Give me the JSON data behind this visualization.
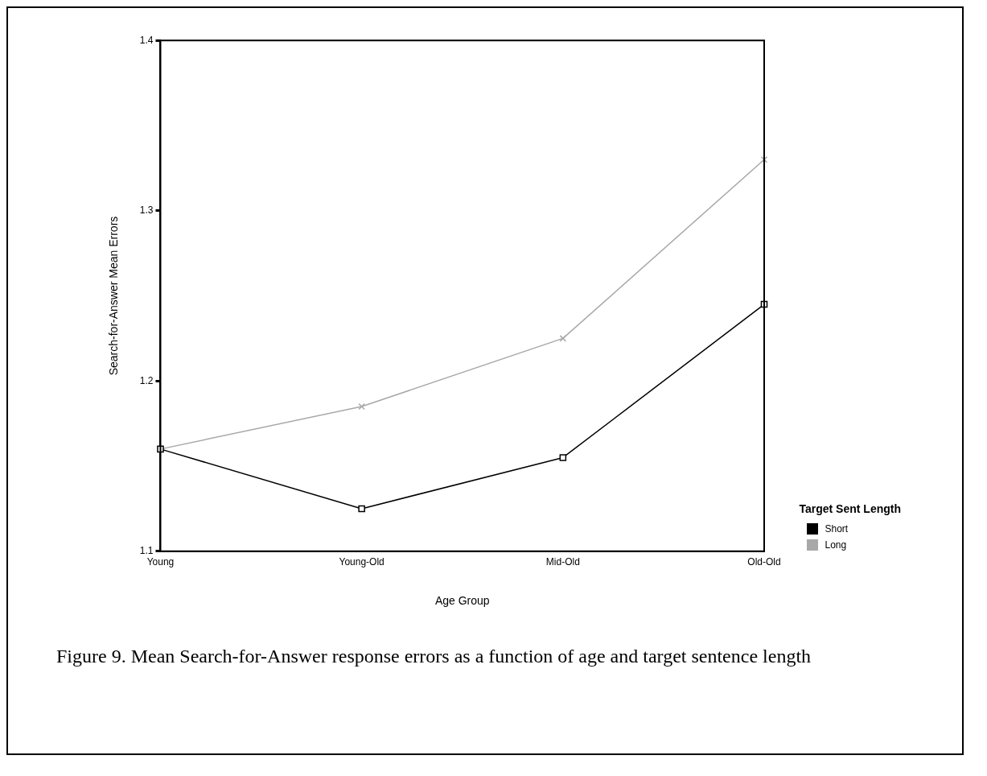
{
  "chart_data": {
    "type": "line",
    "xlabel": "Age Group",
    "ylabel": "Search-for-Answer Mean Errors",
    "legend_title": "Target Sent Length",
    "legend": "right",
    "categories": [
      "Young",
      "Young-Old",
      "Mid-Old",
      "Old-Old"
    ],
    "series": [
      {
        "name": "Short",
        "color": "#000000",
        "marker": "square",
        "values": [
          1.16,
          1.125,
          1.155,
          1.245
        ]
      },
      {
        "name": "Long",
        "color": "#a8a8a8",
        "marker": "cross",
        "values": [
          1.16,
          1.185,
          1.225,
          1.33
        ]
      }
    ],
    "ylim": [
      1.1,
      1.4
    ],
    "yticks": [
      1.1,
      1.2,
      1.3,
      1.4
    ],
    "grid": false,
    "annotations": [
      "Figure 9. Mean Search-for-Answer response errors as a function of age and target sentence length"
    ]
  }
}
